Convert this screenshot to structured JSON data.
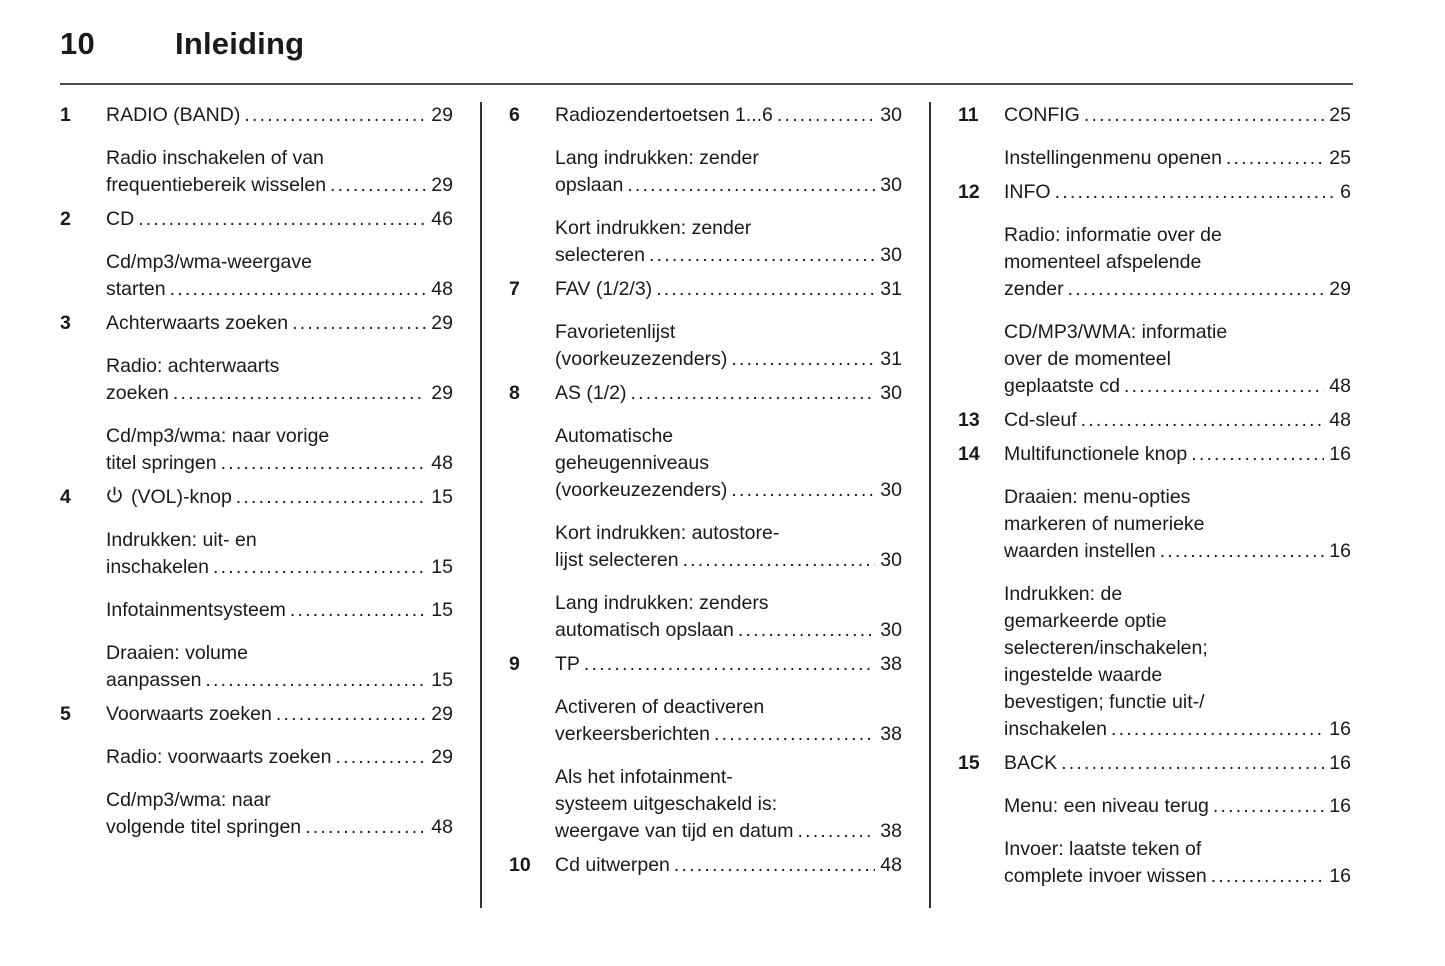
{
  "header": {
    "page_number": "10",
    "title": "Inleiding"
  },
  "toc": {
    "leader_char": ".",
    "columns": [
      {
        "entries": [
          {
            "num": "1",
            "lines": [
              "RADIO (BAND)"
            ],
            "page": "29"
          },
          {
            "num": "",
            "lines": [
              "Radio inschakelen of van",
              "frequentiebereik wisselen"
            ],
            "page": "29"
          },
          {
            "num": "2",
            "lines": [
              "CD"
            ],
            "page": "46"
          },
          {
            "num": "",
            "lines": [
              "Cd/mp3/wma-weergave",
              "starten"
            ],
            "page": "48"
          },
          {
            "num": "3",
            "lines": [
              "Achterwaarts zoeken"
            ],
            "page": "29"
          },
          {
            "num": "",
            "lines": [
              "Radio: achterwaarts",
              "zoeken"
            ],
            "page": "29"
          },
          {
            "num": "",
            "lines": [
              "Cd/mp3/wma: naar vorige",
              "titel springen"
            ],
            "page": "48"
          },
          {
            "num": "4",
            "icon": "power-icon",
            "lines": [
              "(VOL)-knop"
            ],
            "page": "15"
          },
          {
            "num": "",
            "lines": [
              "Indrukken: uit- en",
              "inschakelen"
            ],
            "page": "15"
          },
          {
            "num": "",
            "lines": [
              "Infotainmentsysteem"
            ],
            "page": "15"
          },
          {
            "num": "",
            "lines": [
              "Draaien: volume",
              "aanpassen"
            ],
            "page": "15"
          },
          {
            "num": "5",
            "lines": [
              "Voorwaarts zoeken"
            ],
            "page": "29"
          },
          {
            "num": "",
            "lines": [
              "Radio: voorwaarts zoeken"
            ],
            "page": "29"
          },
          {
            "num": "",
            "lines": [
              "Cd/mp3/wma: naar",
              "volgende titel springen"
            ],
            "page": "48"
          }
        ]
      },
      {
        "entries": [
          {
            "num": "6",
            "lines": [
              "Radiozendertoetsen 1...6"
            ],
            "page": "30"
          },
          {
            "num": "",
            "lines": [
              "Lang indrukken: zender",
              "opslaan"
            ],
            "page": "30"
          },
          {
            "num": "",
            "lines": [
              "Kort indrukken: zender",
              "selecteren"
            ],
            "page": "30"
          },
          {
            "num": "7",
            "lines": [
              "FAV (1/2/3)"
            ],
            "page": "31"
          },
          {
            "num": "",
            "lines": [
              "Favorietenlijst",
              "(voorkeuzezenders)"
            ],
            "page": "31"
          },
          {
            "num": "8",
            "lines": [
              "AS (1/2)"
            ],
            "page": "30"
          },
          {
            "num": "",
            "lines": [
              "Automatische",
              "geheugenniveaus",
              "(voorkeuzezenders)"
            ],
            "page": "30"
          },
          {
            "num": "",
            "lines": [
              "Kort indrukken: autostore-",
              "lijst selecteren"
            ],
            "page": "30"
          },
          {
            "num": "",
            "lines": [
              "Lang indrukken: zenders",
              "automatisch opslaan"
            ],
            "page": "30"
          },
          {
            "num": "9",
            "lines": [
              "TP"
            ],
            "page": "38"
          },
          {
            "num": "",
            "lines": [
              "Activeren of deactiveren",
              "verkeersberichten"
            ],
            "page": "38"
          },
          {
            "num": "",
            "lines": [
              "Als het infotainment-",
              "systeem uitgeschakeld is:",
              "weergave van tijd en datum"
            ],
            "page": "38"
          },
          {
            "num": "10",
            "lines": [
              "Cd uitwerpen"
            ],
            "page": "48"
          }
        ]
      },
      {
        "entries": [
          {
            "num": "11",
            "lines": [
              "CONFIG"
            ],
            "page": "25"
          },
          {
            "num": "",
            "lines": [
              "Instellingenmenu openen"
            ],
            "page": "25"
          },
          {
            "num": "12",
            "lines": [
              "INFO"
            ],
            "page": "6"
          },
          {
            "num": "",
            "lines": [
              "Radio: informatie over de",
              "momenteel afspelende",
              "zender"
            ],
            "page": "29"
          },
          {
            "num": "",
            "lines": [
              "CD/MP3/WMA: informatie",
              "over de momenteel",
              "geplaatste cd"
            ],
            "page": "48"
          },
          {
            "num": "13",
            "lines": [
              "Cd-sleuf"
            ],
            "page": "48"
          },
          {
            "num": "14",
            "lines": [
              "Multifunctionele knop"
            ],
            "page": "16"
          },
          {
            "num": "",
            "lines": [
              "Draaien: menu-opties",
              "markeren of numerieke",
              "waarden instellen"
            ],
            "page": "16"
          },
          {
            "num": "",
            "lines": [
              "Indrukken: de",
              "gemarkeerde optie",
              "selecteren/inschakelen;",
              "ingestelde waarde",
              "bevestigen; functie uit-/",
              "inschakelen"
            ],
            "page": "16"
          },
          {
            "num": "15",
            "lines": [
              "BACK"
            ],
            "page": "16"
          },
          {
            "num": "",
            "lines": [
              "Menu: een niveau terug"
            ],
            "page": "16"
          },
          {
            "num": "",
            "lines": [
              "Invoer: laatste teken of",
              "complete invoer wissen"
            ],
            "page": "16"
          }
        ]
      }
    ]
  }
}
